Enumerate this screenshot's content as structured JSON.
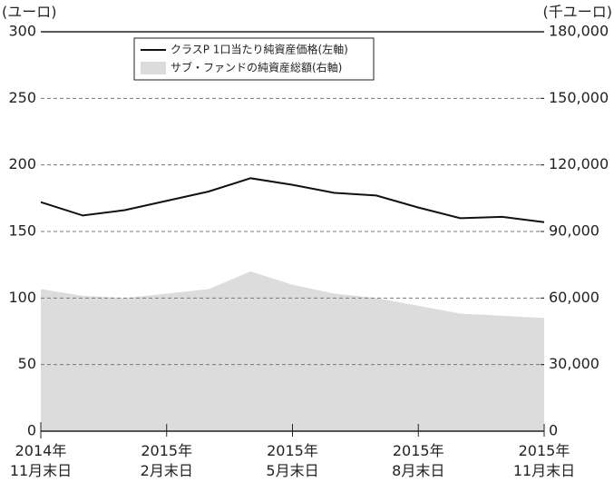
{
  "chart_data": {
    "type": "line-area",
    "y_label": "(ユーロ)",
    "y2_label": "(千ユーロ)",
    "categories": [
      "2014年\n11月末日",
      null,
      null,
      "2015年\n2月末日",
      null,
      null,
      "2015年\n5月末日",
      null,
      null,
      "2015年\n8月末日",
      null,
      null,
      "2015年\n11月末日"
    ],
    "series": [
      {
        "name": "クラスP 1口当たり純資産価格(左軸)",
        "color": "#111111",
        "kind": "line",
        "values": [
          172,
          162,
          166,
          173,
          180,
          190,
          185,
          179,
          177,
          168,
          160,
          161,
          157
        ]
      },
      {
        "name": "サブ・ファンドの純資産総額(右軸)",
        "color": "#dcdcdc",
        "kind": "area",
        "axis": "y2",
        "values": [
          64000,
          61000,
          60000,
          62000,
          64000,
          72000,
          66000,
          62000,
          60000,
          56500,
          53000,
          52000,
          51000
        ]
      }
    ],
    "ylim": [
      0,
      300
    ],
    "yticks": [
      0,
      50,
      100,
      150,
      200,
      250,
      300
    ],
    "y2lim": [
      0,
      180000
    ],
    "y2ticks": [
      0,
      {
        "value": 30000,
        "label": "30,000"
      },
      {
        "value": 60000,
        "label": "60,000"
      },
      {
        "value": 90000,
        "label": "90,000"
      },
      {
        "value": 120000,
        "label": "120,000"
      },
      {
        "value": 150000,
        "label": "150,000"
      },
      {
        "value": 180000,
        "label": "180,000"
      }
    ],
    "grid": true,
    "legend": "top-left"
  }
}
